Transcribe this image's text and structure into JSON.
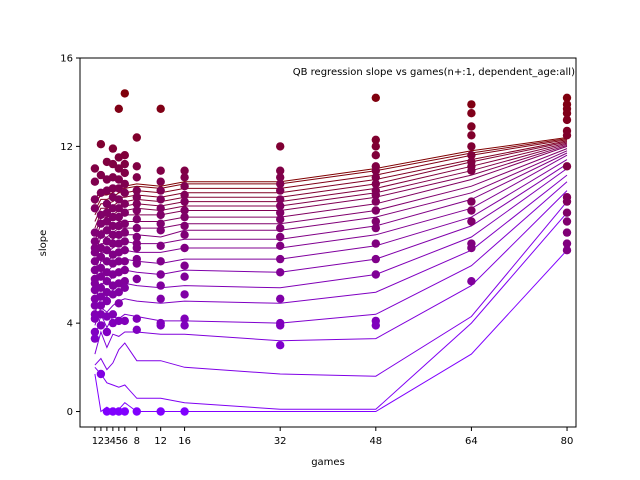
{
  "chart_data": {
    "type": "scatter",
    "title": "QB regression slope vs games(n+:1, dependent_age:all)",
    "xlabel": "games",
    "ylabel": "slope",
    "xticks": [
      1,
      2,
      3,
      4,
      5,
      6,
      8,
      12,
      16,
      32,
      48,
      64,
      80
    ],
    "yticks": [
      0,
      4,
      12,
      16
    ],
    "xlim": [
      -1.5,
      81.5
    ],
    "ylim": [
      -0.7,
      16
    ],
    "grid": false,
    "colors": {
      "start": "#8000ff",
      "end": "#800000"
    },
    "x": [
      1,
      2,
      3,
      4,
      5,
      6,
      8,
      12,
      16,
      32,
      48,
      64,
      80
    ],
    "fit_series": [
      {
        "values": [
          1.7,
          0.0,
          0.2,
          0.0,
          0.1,
          0.4,
          0.0,
          0.0,
          0.0,
          0.0,
          0.0,
          2.6,
          7.3
        ]
      },
      {
        "values": [
          2.0,
          1.7,
          1.3,
          1.2,
          1.1,
          1.2,
          0.6,
          0.6,
          0.4,
          0.1,
          0.1,
          4.0,
          9.0
        ]
      },
      {
        "values": [
          2.1,
          2.4,
          1.9,
          2.2,
          2.8,
          3.1,
          2.3,
          2.3,
          2.0,
          1.7,
          1.6,
          4.3,
          9.5
        ]
      },
      {
        "values": [
          2.6,
          3.6,
          2.9,
          3.5,
          3.4,
          3.6,
          3.6,
          3.5,
          3.5,
          3.2,
          3.3,
          5.7,
          10.0
        ]
      },
      {
        "values": [
          3.2,
          4.4,
          3.8,
          4.3,
          4.2,
          4.4,
          4.3,
          4.1,
          4.1,
          4.0,
          4.4,
          6.6,
          10.4
        ]
      },
      {
        "values": [
          3.9,
          4.7,
          4.5,
          4.8,
          5.0,
          5.1,
          5.0,
          4.9,
          5.0,
          4.9,
          5.4,
          7.3,
          10.7
        ]
      },
      {
        "values": [
          4.5,
          5.1,
          5.2,
          5.5,
          5.7,
          5.8,
          5.7,
          5.6,
          5.7,
          5.6,
          6.2,
          7.9,
          11.0
        ]
      },
      {
        "values": [
          5.0,
          5.8,
          5.8,
          6.1,
          6.3,
          6.4,
          6.3,
          6.2,
          6.4,
          6.3,
          6.9,
          8.4,
          11.2
        ]
      },
      {
        "values": [
          5.5,
          6.3,
          6.3,
          6.6,
          6.8,
          6.9,
          6.8,
          6.7,
          6.9,
          6.9,
          7.5,
          8.8,
          11.4
        ]
      },
      {
        "values": [
          5.9,
          6.8,
          6.8,
          7.0,
          7.2,
          7.3,
          7.2,
          7.2,
          7.4,
          7.4,
          8.0,
          9.2,
          11.6
        ]
      },
      {
        "values": [
          6.3,
          7.2,
          7.2,
          7.4,
          7.6,
          7.7,
          7.6,
          7.6,
          7.8,
          7.8,
          8.4,
          9.6,
          11.7
        ]
      },
      {
        "values": [
          6.7,
          7.6,
          7.6,
          7.8,
          8.0,
          8.0,
          8.0,
          7.9,
          8.2,
          8.2,
          8.8,
          9.9,
          11.8
        ]
      },
      {
        "values": [
          7.1,
          7.9,
          7.9,
          8.1,
          8.3,
          8.3,
          8.3,
          8.3,
          8.5,
          8.5,
          9.1,
          10.2,
          11.9
        ]
      },
      {
        "values": [
          7.4,
          8.2,
          8.2,
          8.4,
          8.6,
          8.6,
          8.6,
          8.6,
          8.8,
          8.8,
          9.4,
          10.5,
          12.0
        ]
      },
      {
        "values": [
          7.7,
          8.5,
          8.5,
          8.7,
          8.9,
          8.9,
          8.9,
          8.9,
          9.1,
          9.1,
          9.7,
          10.7,
          12.05
        ]
      },
      {
        "values": [
          8.0,
          8.8,
          8.8,
          8.9,
          9.1,
          9.1,
          9.2,
          9.1,
          9.3,
          9.3,
          9.9,
          10.9,
          12.1
        ]
      },
      {
        "values": [
          8.3,
          9.0,
          9.0,
          9.1,
          9.3,
          9.3,
          9.4,
          9.3,
          9.5,
          9.5,
          10.1,
          11.1,
          12.15
        ]
      },
      {
        "values": [
          8.6,
          9.2,
          9.2,
          9.3,
          9.5,
          9.5,
          9.6,
          9.5,
          9.7,
          9.7,
          10.3,
          11.3,
          12.2
        ]
      },
      {
        "values": [
          8.9,
          9.4,
          9.4,
          9.5,
          9.7,
          9.7,
          9.8,
          9.7,
          9.9,
          9.9,
          10.5,
          11.4,
          12.25
        ]
      },
      {
        "values": [
          9.1,
          9.6,
          9.6,
          9.7,
          9.9,
          9.9,
          10.0,
          9.9,
          10.1,
          10.1,
          10.7,
          11.6,
          12.3
        ]
      },
      {
        "values": [
          9.4,
          9.8,
          9.8,
          9.9,
          10.1,
          10.1,
          10.2,
          10.1,
          10.3,
          10.3,
          10.9,
          11.7,
          12.35
        ]
      },
      {
        "values": [
          9.6,
          10.0,
          10.0,
          10.0,
          10.2,
          10.2,
          10.3,
          10.2,
          10.4,
          10.4,
          11.0,
          11.8,
          12.4
        ]
      }
    ],
    "points": [
      {
        "x": 1,
        "ys": [
          11.0,
          10.4,
          9.6,
          9.2,
          8.1,
          7.7,
          7.4,
          7.2,
          6.8,
          6.4,
          6.0,
          5.8,
          5.5,
          5.1,
          4.8,
          4.4,
          4.2,
          3.6,
          3.3
        ]
      },
      {
        "x": 2,
        "ys": [
          12.1,
          10.7,
          9.9,
          8.9,
          8.5,
          8.0,
          7.4,
          7.0,
          6.5,
          6.1,
          5.6,
          5.2,
          4.8,
          4.4,
          3.9,
          1.7
        ]
      },
      {
        "x": 3,
        "ys": [
          11.3,
          10.5,
          10.0,
          9.4,
          9.0,
          8.6,
          8.2,
          7.7,
          7.3,
          6.8,
          6.3,
          5.9,
          5.4,
          5.0,
          4.3,
          3.6,
          0.0
        ]
      },
      {
        "x": 4,
        "ys": [
          11.9,
          11.2,
          10.6,
          10.1,
          9.7,
          9.2,
          8.8,
          8.4,
          8.0,
          7.6,
          7.1,
          6.7,
          6.2,
          5.7,
          5.3,
          4.4,
          4.0,
          0.0
        ]
      },
      {
        "x": 5,
        "ys": [
          13.7,
          11.5,
          11.0,
          10.5,
          10.1,
          9.6,
          9.2,
          8.8,
          8.4,
          8.0,
          7.6,
          7.2,
          6.8,
          6.3,
          5.8,
          5.4,
          4.9,
          4.1,
          0.0
        ]
      },
      {
        "x": 6,
        "ys": [
          14.4,
          11.6,
          11.2,
          10.8,
          10.3,
          9.9,
          9.4,
          9.0,
          8.5,
          8.1,
          7.7,
          7.3,
          6.8,
          6.4,
          5.9,
          5.6,
          4.1,
          0.0
        ]
      },
      {
        "x": 8,
        "ys": [
          12.4,
          11.1,
          10.6,
          10.0,
          9.7,
          9.4,
          9.1,
          8.7,
          8.3,
          7.9,
          7.6,
          7.4,
          6.9,
          6.7,
          6.0,
          4.2,
          3.7,
          0.0
        ]
      },
      {
        "x": 12,
        "ys": [
          13.7,
          10.9,
          10.4,
          10.0,
          9.6,
          9.2,
          8.9,
          8.5,
          8.2,
          7.5,
          6.8,
          6.2,
          5.7,
          5.1,
          4.0,
          3.9,
          0.0
        ]
      },
      {
        "x": 16,
        "ys": [
          10.9,
          10.6,
          10.2,
          9.8,
          9.5,
          9.1,
          8.8,
          8.4,
          8.0,
          7.4,
          6.6,
          6.1,
          5.3,
          4.2,
          3.9,
          0.0
        ]
      },
      {
        "x": 32,
        "ys": [
          12.0,
          10.9,
          10.6,
          10.3,
          10.0,
          9.6,
          9.3,
          9.0,
          8.7,
          8.3,
          7.9,
          7.5,
          6.9,
          6.3,
          5.1,
          4.0,
          3.9,
          3.0
        ]
      },
      {
        "x": 48,
        "ys": [
          14.2,
          12.3,
          12.0,
          11.6,
          11.1,
          10.9,
          10.6,
          10.3,
          10.0,
          9.8,
          9.5,
          9.1,
          8.6,
          8.3,
          7.6,
          6.9,
          6.2,
          4.1,
          3.9
        ]
      },
      {
        "x": 64,
        "ys": [
          13.9,
          13.5,
          12.9,
          12.5,
          12.0,
          11.6,
          11.3,
          11.1,
          10.9,
          9.5,
          9.1,
          8.6,
          7.6,
          7.4,
          5.9
        ]
      },
      {
        "x": 80,
        "ys": [
          14.2,
          13.9,
          13.7,
          13.5,
          13.2,
          12.7,
          12.5,
          11.1,
          9.7,
          9.5,
          9.0,
          8.6,
          8.1,
          7.6,
          7.3
        ]
      }
    ]
  }
}
